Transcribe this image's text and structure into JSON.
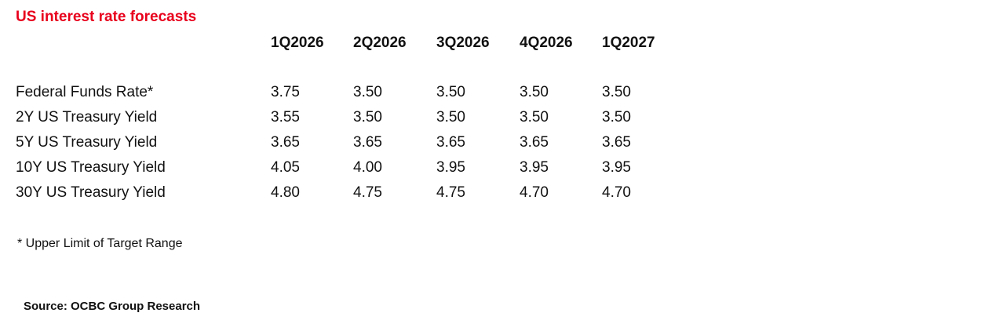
{
  "header": {
    "title": "US interest rate forecasts"
  },
  "table": {
    "columns": [
      "1Q2026",
      "2Q2026",
      "3Q2026",
      "4Q2026",
      "1Q2027"
    ],
    "rows": [
      {
        "label": "Federal Funds Rate*",
        "values": [
          "3.75",
          "3.50",
          "3.50",
          "3.50",
          "3.50"
        ]
      },
      {
        "label": "2Y US Treasury Yield",
        "values": [
          "3.55",
          "3.50",
          "3.50",
          "3.50",
          "3.50"
        ]
      },
      {
        "label": "5Y US Treasury Yield",
        "values": [
          "3.65",
          "3.65",
          "3.65",
          "3.65",
          "3.65"
        ]
      },
      {
        "label": "10Y US Treasury Yield",
        "values": [
          "4.05",
          "4.00",
          "3.95",
          "3.95",
          "3.95"
        ]
      },
      {
        "label": "30Y US Treasury Yield",
        "values": [
          "4.80",
          "4.75",
          "4.75",
          "4.70",
          "4.70"
        ]
      }
    ]
  },
  "footnote": "* Upper Limit of Target Range",
  "source": "Source: OCBC Group Research"
}
